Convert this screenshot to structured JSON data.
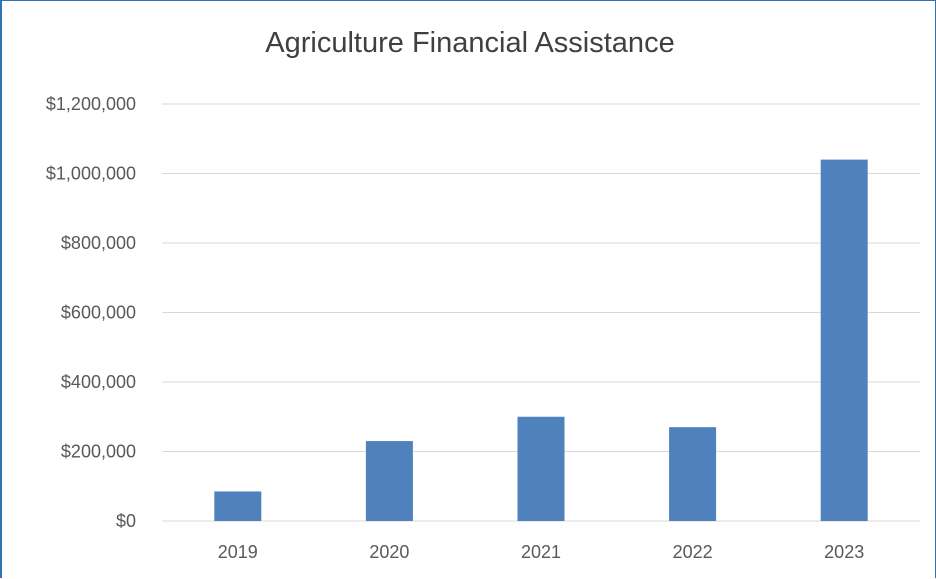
{
  "chart_data": {
    "type": "bar",
    "title": "Agriculture Financial Assistance",
    "xlabel": "",
    "ylabel": "",
    "categories": [
      "2019",
      "2020",
      "2021",
      "2022",
      "2023"
    ],
    "values": [
      85000,
      230000,
      300000,
      270000,
      1040000
    ],
    "ylim": [
      0,
      1200000
    ],
    "y_ticks": [
      0,
      200000,
      400000,
      600000,
      800000,
      1000000,
      1200000
    ],
    "y_tick_labels": [
      "$0",
      "$200,000",
      "$400,000",
      "$600,000",
      "$800,000",
      "$1,000,000",
      "$1,200,000"
    ],
    "grid": true,
    "legend": "none",
    "bar_color": "#4f81bd",
    "grid_color": "#d9d9d9"
  }
}
